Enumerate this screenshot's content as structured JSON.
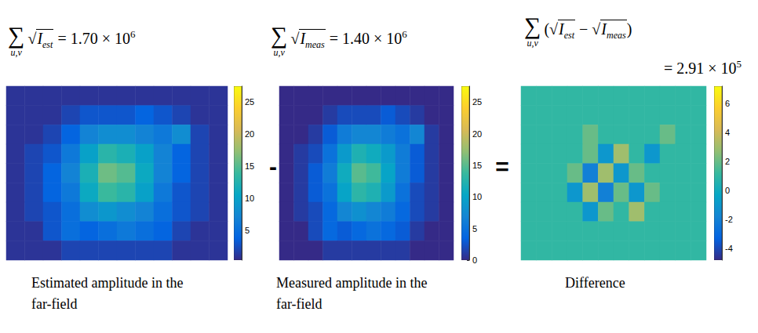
{
  "chart_data": [
    {
      "type": "heatmap",
      "title": "Estimated amplitude in the far-field",
      "annotation": {
        "sum_sign": "∑",
        "index": "u,v",
        "root_sign": "√",
        "terms": [
          {
            "symbol": "I",
            "subscript": "est"
          }
        ],
        "result": "= 1.70 × 10",
        "exponent": "6"
      },
      "tick_labels": false,
      "cells": [
        [
          1,
          1,
          1,
          1,
          1,
          1,
          1,
          1,
          1,
          1,
          1,
          1
        ],
        [
          1,
          1,
          1,
          2,
          3,
          3,
          3,
          4,
          3,
          2,
          1,
          1
        ],
        [
          1,
          1,
          2,
          4,
          7,
          8,
          8,
          7,
          6,
          8,
          2,
          1
        ],
        [
          1,
          2,
          3,
          6,
          10,
          13,
          12,
          10,
          7,
          4,
          2,
          1
        ],
        [
          1,
          2,
          4,
          7,
          12,
          16,
          15,
          11,
          7,
          4,
          2,
          1
        ],
        [
          1,
          2,
          4,
          6,
          11,
          14,
          13,
          10,
          6,
          3,
          2,
          1
        ],
        [
          1,
          2,
          3,
          5,
          8,
          9,
          8,
          7,
          5,
          3,
          2,
          1
        ],
        [
          1,
          1,
          3,
          5,
          4,
          5,
          6,
          5,
          4,
          2,
          1,
          1
        ],
        [
          1,
          1,
          1,
          2,
          2,
          2,
          2,
          2,
          2,
          1,
          1,
          1
        ]
      ],
      "colorbar": {
        "ylim": [
          0.4,
          27.5
        ],
        "yticks": [
          5,
          10,
          15,
          20,
          25
        ]
      }
    },
    {
      "type": "heatmap",
      "title": "Measured amplitude in the far-field",
      "annotation": {
        "sum_sign": "∑",
        "index": "u,v",
        "root_sign": "√",
        "terms": [
          {
            "symbol": "I",
            "subscript": "meas"
          }
        ],
        "result": "= 1.40 × 10",
        "exponent": "6"
      },
      "tick_labels": false,
      "cells": [
        [
          0,
          0,
          0,
          0,
          0,
          0,
          0,
          0,
          0,
          0,
          0,
          0
        ],
        [
          0,
          0,
          0,
          1,
          2,
          2,
          2,
          3,
          2,
          1,
          0,
          0
        ],
        [
          0,
          0,
          1,
          3,
          6,
          7,
          7,
          6,
          5,
          7,
          1,
          0
        ],
        [
          0,
          1,
          2,
          5,
          9,
          12,
          11,
          9,
          6,
          3,
          1,
          0
        ],
        [
          0,
          1,
          3,
          6,
          11,
          15,
          14,
          10,
          6,
          3,
          1,
          0
        ],
        [
          0,
          1,
          3,
          5,
          10,
          13,
          12,
          9,
          5,
          2,
          1,
          0
        ],
        [
          0,
          1,
          2,
          4,
          7,
          8,
          7,
          6,
          4,
          2,
          1,
          0
        ],
        [
          0,
          0,
          2,
          4,
          3,
          4,
          5,
          4,
          3,
          1,
          0,
          0
        ],
        [
          0,
          0,
          0,
          1,
          1,
          1,
          1,
          1,
          1,
          0,
          0,
          0
        ]
      ],
      "colorbar": {
        "ylim": [
          0,
          27.5
        ],
        "yticks": [
          0,
          5,
          10,
          15,
          20,
          25
        ]
      }
    },
    {
      "type": "heatmap",
      "title": "Difference",
      "annotation": {
        "sum_sign": "∑",
        "index": "u,v",
        "root_sign": "√",
        "open": "(",
        "close": ")",
        "joiner": "−",
        "terms": [
          {
            "symbol": "I",
            "subscript": "est"
          },
          {
            "symbol": "I",
            "subscript": "meas"
          }
        ],
        "result": "= 2.91 × 10",
        "exponent": "5"
      },
      "tick_labels": false,
      "cells": [
        [
          1,
          1,
          1,
          1,
          1,
          1,
          1,
          1,
          1,
          1,
          1,
          1
        ],
        [
          1,
          1,
          1,
          1,
          1,
          1,
          1,
          1,
          1,
          1,
          1,
          1
        ],
        [
          1,
          1,
          1,
          1,
          2,
          1,
          1,
          1,
          1,
          2,
          1,
          1
        ],
        [
          1,
          1,
          1,
          1,
          2,
          -1,
          3,
          1,
          -1,
          1,
          1,
          1
        ],
        [
          1,
          1,
          1,
          2,
          -2,
          3,
          -1,
          2,
          1,
          1,
          1,
          1
        ],
        [
          1,
          1,
          1,
          -1,
          3,
          -2,
          2,
          -1,
          2,
          1,
          1,
          1
        ],
        [
          1,
          1,
          1,
          1,
          -1,
          2,
          1,
          3,
          1,
          1,
          1,
          1
        ],
        [
          1,
          1,
          1,
          1,
          1,
          1,
          1,
          1,
          1,
          1,
          1,
          1
        ],
        [
          1,
          1,
          1,
          1,
          1,
          1,
          1,
          1,
          1,
          1,
          1,
          1
        ]
      ],
      "colorbar": {
        "ylim": [
          -4.8,
          7.2
        ],
        "yticks": [
          -4,
          -2,
          0,
          2,
          4,
          6
        ]
      }
    }
  ],
  "operators": [
    "-",
    "="
  ]
}
